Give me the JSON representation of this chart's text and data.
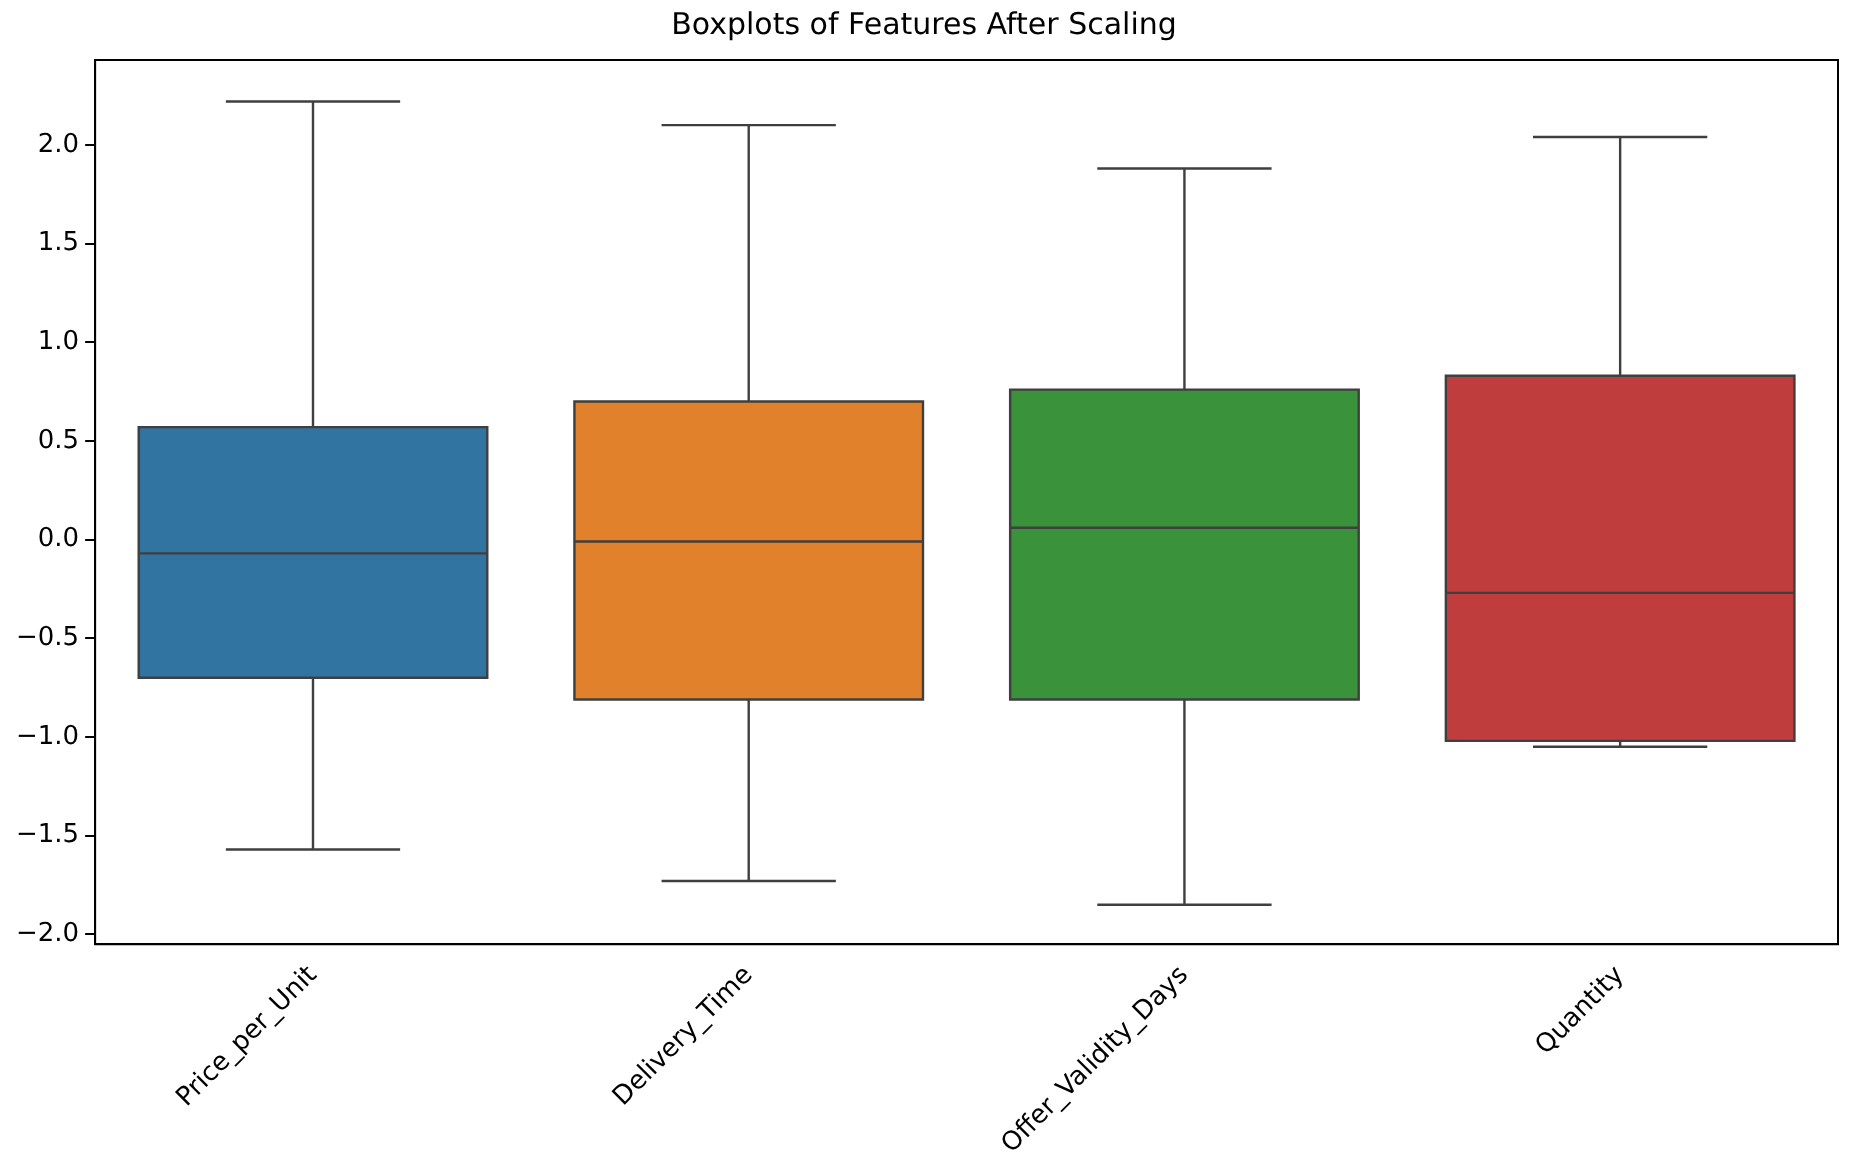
{
  "chart_data": {
    "type": "box",
    "title": "Boxplots of Features After Scaling",
    "categories": [
      "Price_per_Unit",
      "Delivery_Time",
      "Offer_Validity_Days",
      "Quantity"
    ],
    "colors": [
      "#3274a1",
      "#e1812c",
      "#3a923a",
      "#c03d3e"
    ],
    "boxes": [
      {
        "low": -1.57,
        "q1": -0.7,
        "median": -0.07,
        "q3": 0.57,
        "high": 2.22
      },
      {
        "low": -1.73,
        "q1": -0.81,
        "median": -0.01,
        "q3": 0.7,
        "high": 2.1
      },
      {
        "low": -1.85,
        "q1": -0.81,
        "median": 0.06,
        "q3": 0.76,
        "high": 1.88
      },
      {
        "low": -1.05,
        "q1": -1.02,
        "median": -0.27,
        "q3": 0.83,
        "high": 2.04
      }
    ],
    "ylim": [
      -2.05,
      2.43
    ],
    "yticks": [
      {
        "value": -2,
        "label": "−2.0"
      },
      {
        "value": -1.5,
        "label": "−1.5"
      },
      {
        "value": -1,
        "label": "−1.0"
      },
      {
        "value": -0.5,
        "label": "−0.5"
      },
      {
        "value": 0,
        "label": "0.0"
      },
      {
        "value": 0.5,
        "label": "0.5"
      },
      {
        "value": 1,
        "label": "1.0"
      },
      {
        "value": 1.5,
        "label": "1.5"
      },
      {
        "value": 2,
        "label": "2.0"
      }
    ],
    "grid": false,
    "legend": false
  }
}
